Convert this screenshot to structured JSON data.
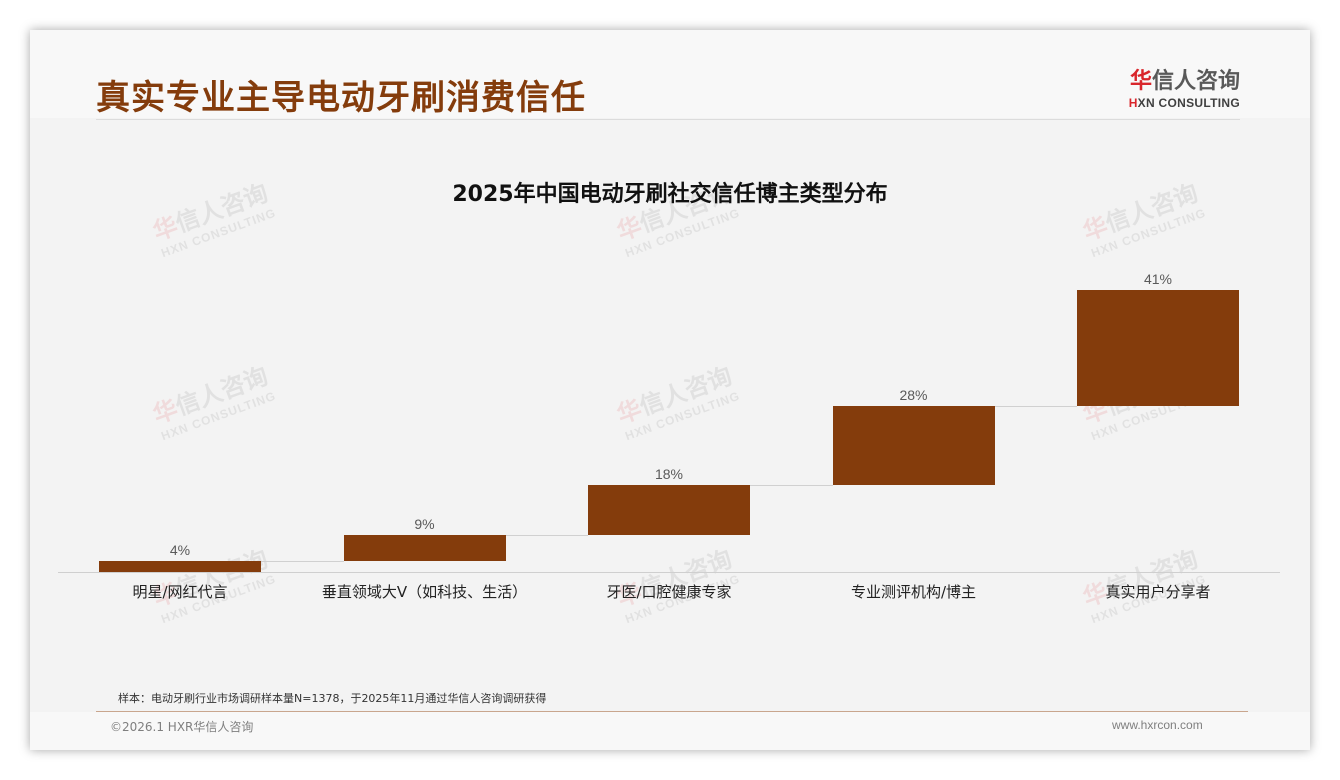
{
  "header": {
    "title": "真实专业主导电动牙刷消费信任",
    "logo_cn_accent": "华",
    "logo_cn_rest": "信人咨询",
    "logo_en_accent": "H",
    "logo_en_rest": "XN CONSULTING"
  },
  "watermark": {
    "cn_accent": "华",
    "cn_rest": "信人咨询",
    "en": "HXN CONSULTING"
  },
  "chart_data": {
    "type": "bar",
    "subtype": "waterfall",
    "title": "2025年中国电动牙刷社交信任博主类型分布",
    "categories": [
      "明星/网红代言",
      "垂直领域大V（如科技、生活）",
      "牙医/口腔健康专家",
      "专业测评机构/博主",
      "真实用户分享者"
    ],
    "values": [
      4,
      9,
      18,
      28,
      41
    ],
    "value_labels": [
      "4%",
      "9%",
      "18%",
      "28%",
      "41%"
    ],
    "cumulative_start": [
      0,
      4,
      13,
      31,
      59
    ],
    "cumulative_end": [
      4,
      13,
      31,
      59,
      100
    ],
    "unit": "%",
    "xlabel": "",
    "ylabel": "",
    "ylim": [
      0,
      100
    ],
    "grid": false,
    "legend": "none",
    "bar_color": "#843c0c"
  },
  "footer": {
    "source": "样本：电动牙刷行业市场调研样本量N=1378，于2025年11月通过华信人咨询调研获得",
    "copyright": "©2026.1 HXR华信人咨询",
    "website": "www.hxrcon.com"
  }
}
